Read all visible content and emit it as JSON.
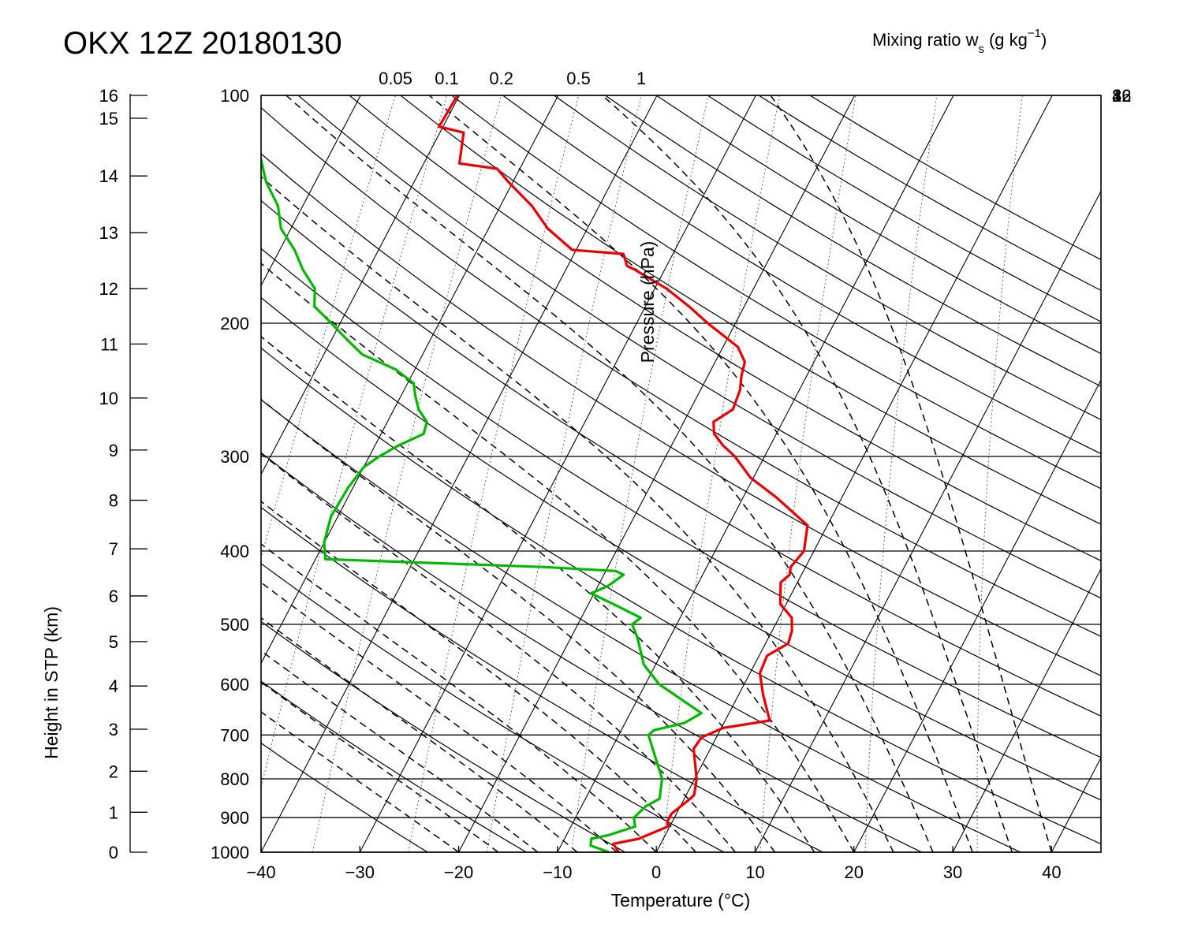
{
  "title": "OKX 12Z 20180130",
  "chart_data": {
    "type": "line",
    "diagram": "skew-T log-p",
    "title": "OKX 12Z 20180130",
    "xlabel": "Temperature (°C)",
    "pressure_label": "Pressure (hPa)",
    "height_label": "Height in STP (km)",
    "mixing_ratio_label": "Mixing ratio w",
    "mixing_ratio_subscript": "s",
    "mixing_ratio_units": "(g kg",
    "mixing_ratio_units_exp": "−1",
    "mixing_ratio_units_close": ")",
    "xlim": [
      -40,
      45
    ],
    "plim": [
      1000,
      100
    ],
    "x_ticks": [
      "−40",
      "−30",
      "−20",
      "−10",
      "0",
      "10",
      "20",
      "30",
      "40"
    ],
    "x_tick_values": [
      -40,
      -30,
      -20,
      -10,
      0,
      10,
      20,
      30,
      40
    ],
    "pressure_ticks": [
      "100",
      "200",
      "300",
      "400",
      "500",
      "600",
      "700",
      "800",
      "900",
      "1000"
    ],
    "pressure_values": [
      100,
      200,
      300,
      400,
      500,
      600,
      700,
      800,
      900,
      1000
    ],
    "height_ticks": [
      "0",
      "1",
      "2",
      "3",
      "4",
      "5",
      "6",
      "7",
      "8",
      "9",
      "10",
      "11",
      "12",
      "13",
      "14",
      "15",
      "16"
    ],
    "height_values_km": [
      0,
      1,
      2,
      3,
      4,
      5,
      6,
      7,
      8,
      9,
      10,
      11,
      12,
      13,
      14,
      15,
      16
    ],
    "mixing_ratio_top_ticks": [
      "0.05",
      "0.1",
      "0.2",
      "0.5",
      "1"
    ],
    "mixing_ratio_top_values": [
      0.05,
      0.1,
      0.2,
      0.5,
      1
    ],
    "mixing_ratio_right_ticks": [
      "2",
      "4",
      "8",
      "16",
      "32"
    ],
    "mixing_ratio_right_values": [
      2,
      4,
      8,
      16,
      32
    ],
    "grid": true,
    "series": [
      {
        "color": "#ee0000",
        "points": [
          {
            "p": 1000,
            "t": -3.8
          },
          {
            "p": 975,
            "t": -4.8
          },
          {
            "p": 960,
            "t": -2.5
          },
          {
            "p": 925,
            "t": -0.2
          },
          {
            "p": 910,
            "t": -0.5
          },
          {
            "p": 890,
            "t": -0.5
          },
          {
            "p": 850,
            "t": 0.6
          },
          {
            "p": 840,
            "t": 0.8
          },
          {
            "p": 800,
            "t": 0.2
          },
          {
            "p": 730,
            "t": -1.7
          },
          {
            "p": 705,
            "t": -1.5
          },
          {
            "p": 685,
            "t": 0.2
          },
          {
            "p": 670,
            "t": 4.5
          },
          {
            "p": 620,
            "t": 2.5
          },
          {
            "p": 580,
            "t": 1.0
          },
          {
            "p": 550,
            "t": 0.8
          },
          {
            "p": 530,
            "t": 2.3
          },
          {
            "p": 510,
            "t": 2.0
          },
          {
            "p": 490,
            "t": 1.3
          },
          {
            "p": 470,
            "t": -0.6
          },
          {
            "p": 440,
            "t": -1.7
          },
          {
            "p": 430,
            "t": -1.2
          },
          {
            "p": 420,
            "t": -1.5
          },
          {
            "p": 400,
            "t": -1.0
          },
          {
            "p": 370,
            "t": -2.0
          },
          {
            "p": 340,
            "t": -6.6
          },
          {
            "p": 320,
            "t": -10.3
          },
          {
            "p": 300,
            "t": -13.0
          },
          {
            "p": 290,
            "t": -14.8
          },
          {
            "p": 280,
            "t": -16.3
          },
          {
            "p": 270,
            "t": -17.0
          },
          {
            "p": 260,
            "t": -15.7
          },
          {
            "p": 245,
            "t": -16.0
          },
          {
            "p": 235,
            "t": -16.6
          },
          {
            "p": 225,
            "t": -17.0
          },
          {
            "p": 215,
            "t": -18.5
          },
          {
            "p": 200,
            "t": -22.8
          },
          {
            "p": 190,
            "t": -25.6
          },
          {
            "p": 180,
            "t": -28.8
          },
          {
            "p": 170,
            "t": -33.0
          },
          {
            "p": 168,
            "t": -34.0
          },
          {
            "p": 162,
            "t": -35.0
          },
          {
            "p": 160,
            "t": -40.4
          },
          {
            "p": 150,
            "t": -44.0
          },
          {
            "p": 140,
            "t": -46.8
          },
          {
            "p": 130,
            "t": -50.5
          },
          {
            "p": 125,
            "t": -52.3
          },
          {
            "p": 123,
            "t": -56.4
          },
          {
            "p": 112,
            "t": -57.6
          },
          {
            "p": 110,
            "t": -60.4
          },
          {
            "p": 100,
            "t": -60.2
          }
        ]
      },
      {
        "color": "#00bb00",
        "points": [
          {
            "p": 1000,
            "t": -4.8
          },
          {
            "p": 980,
            "t": -7.0
          },
          {
            "p": 960,
            "t": -7.3
          },
          {
            "p": 950,
            "t": -5.8
          },
          {
            "p": 925,
            "t": -3.5
          },
          {
            "p": 900,
            "t": -4.1
          },
          {
            "p": 870,
            "t": -3.5
          },
          {
            "p": 850,
            "t": -2.5
          },
          {
            "p": 800,
            "t": -3.3
          },
          {
            "p": 700,
            "t": -7.0
          },
          {
            "p": 690,
            "t": -6.7
          },
          {
            "p": 675,
            "t": -4.0
          },
          {
            "p": 655,
            "t": -2.8
          },
          {
            "p": 600,
            "t": -8.6
          },
          {
            "p": 565,
            "t": -11.2
          },
          {
            "p": 520,
            "t": -13.3
          },
          {
            "p": 500,
            "t": -14.5
          },
          {
            "p": 490,
            "t": -14.0
          },
          {
            "p": 470,
            "t": -17.5
          },
          {
            "p": 455,
            "t": -20.3
          },
          {
            "p": 445,
            "t": -19.0
          },
          {
            "p": 430,
            "t": -18.0
          },
          {
            "p": 425,
            "t": -19.0
          },
          {
            "p": 420,
            "t": -26.4
          },
          {
            "p": 410,
            "t": -49.0
          },
          {
            "p": 390,
            "t": -50.0
          },
          {
            "p": 360,
            "t": -50.7
          },
          {
            "p": 330,
            "t": -50.5
          },
          {
            "p": 310,
            "t": -50.0
          },
          {
            "p": 300,
            "t": -49.0
          },
          {
            "p": 290,
            "t": -47.6
          },
          {
            "p": 280,
            "t": -45.7
          },
          {
            "p": 270,
            "t": -46.0
          },
          {
            "p": 260,
            "t": -47.5
          },
          {
            "p": 250,
            "t": -48.5
          },
          {
            "p": 240,
            "t": -49.4
          },
          {
            "p": 230,
            "t": -52.0
          },
          {
            "p": 220,
            "t": -56.1
          },
          {
            "p": 210,
            "t": -58.5
          },
          {
            "p": 200,
            "t": -60.9
          },
          {
            "p": 190,
            "t": -63.5
          },
          {
            "p": 180,
            "t": -64.4
          },
          {
            "p": 170,
            "t": -66.6
          },
          {
            "p": 160,
            "t": -68.5
          },
          {
            "p": 150,
            "t": -71.0
          },
          {
            "p": 140,
            "t": -72.5
          },
          {
            "p": 130,
            "t": -75.0
          },
          {
            "p": 120,
            "t": -77.0
          },
          {
            "p": 112,
            "t": -79.0
          },
          {
            "p": 110,
            "t": -80.0
          },
          {
            "p": 100,
            "t": -81.0
          }
        ]
      }
    ]
  }
}
